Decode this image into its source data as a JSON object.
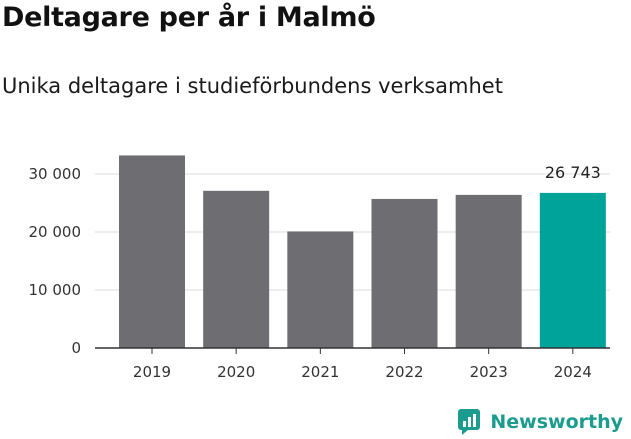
{
  "title": "Deltagare per år i Malmö",
  "subtitle": "Unika deltagare i studieförbundens verksamhet",
  "brand": {
    "name": "Newsworthy",
    "icon": "newsworthy-logo-icon"
  },
  "colors": {
    "bar": "#6e6d72",
    "highlight": "#00a39a",
    "brand": "#1b9c8e",
    "grid": "#dddddd",
    "axis": "#333333"
  },
  "chart_data": {
    "type": "bar",
    "categories": [
      "2019",
      "2020",
      "2021",
      "2022",
      "2023",
      "2024"
    ],
    "values": [
      33200,
      27100,
      20100,
      25700,
      26400,
      26743
    ],
    "highlight_index": 5,
    "data_labels": [
      {
        "index": 5,
        "text": "26 743"
      }
    ],
    "y_ticks": [
      0,
      10000,
      20000,
      30000
    ],
    "y_tick_labels": [
      "0",
      "10 000",
      "20 000",
      "30 000"
    ],
    "ylim": [
      0,
      36000
    ],
    "grid": true,
    "legend": "none"
  }
}
